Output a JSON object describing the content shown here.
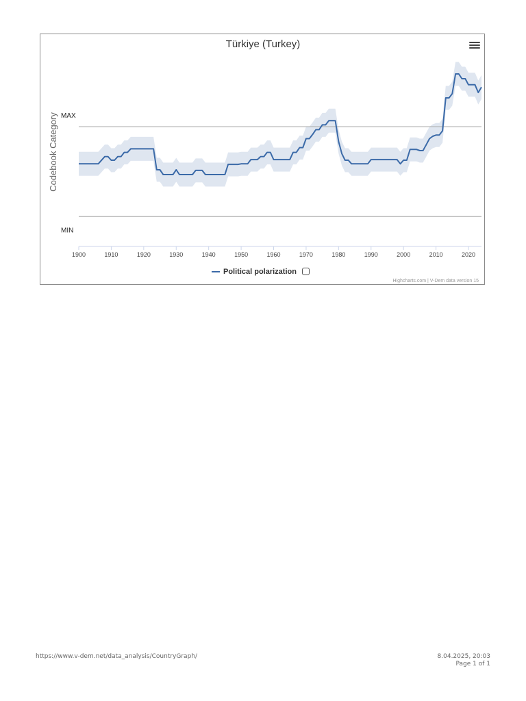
{
  "chart_data": {
    "type": "line",
    "title": "Türkiye (Turkey)",
    "ylabel": "Codebook Category",
    "xlabel": "",
    "xlim": [
      1900,
      2024
    ],
    "ylim": [
      -0.5,
      2.7
    ],
    "x_ticks": [
      "1900",
      "1910",
      "1920",
      "1930",
      "1940",
      "1950",
      "1960",
      "1970",
      "1980",
      "1990",
      "2000",
      "2010",
      "2020"
    ],
    "reference_lines": [
      {
        "label": "MAX",
        "value": 1.5
      },
      {
        "label": "MIN",
        "value": 0
      }
    ],
    "grid": false,
    "legend": "bottom",
    "series": [
      {
        "name": "Political polarization",
        "color": "#3b6aa8",
        "band_color": "#dfe6f0",
        "points": [
          [
            1900,
            0.88
          ],
          [
            1906,
            0.88
          ],
          [
            1908,
            1.0
          ],
          [
            1909,
            1.0
          ],
          [
            1910,
            0.94
          ],
          [
            1911,
            0.94
          ],
          [
            1912,
            1.0
          ],
          [
            1913,
            1.0
          ],
          [
            1914,
            1.07
          ],
          [
            1915,
            1.07
          ],
          [
            1916,
            1.13
          ],
          [
            1922,
            1.13
          ],
          [
            1923,
            1.13
          ],
          [
            1924,
            0.78
          ],
          [
            1925,
            0.78
          ],
          [
            1926,
            0.7
          ],
          [
            1929,
            0.7
          ],
          [
            1930,
            0.78
          ],
          [
            1931,
            0.7
          ],
          [
            1935,
            0.7
          ],
          [
            1936,
            0.77
          ],
          [
            1938,
            0.77
          ],
          [
            1939,
            0.7
          ],
          [
            1945,
            0.7
          ],
          [
            1946,
            0.87
          ],
          [
            1949,
            0.87
          ],
          [
            1950,
            0.88
          ],
          [
            1952,
            0.88
          ],
          [
            1953,
            0.95
          ],
          [
            1955,
            0.95
          ],
          [
            1956,
            1.0
          ],
          [
            1957,
            1.0
          ],
          [
            1958,
            1.07
          ],
          [
            1959,
            1.07
          ],
          [
            1960,
            0.95
          ],
          [
            1965,
            0.95
          ],
          [
            1966,
            1.07
          ],
          [
            1967,
            1.07
          ],
          [
            1968,
            1.15
          ],
          [
            1969,
            1.15
          ],
          [
            1970,
            1.3
          ],
          [
            1971,
            1.3
          ],
          [
            1972,
            1.37
          ],
          [
            1973,
            1.45
          ],
          [
            1974,
            1.45
          ],
          [
            1975,
            1.53
          ],
          [
            1976,
            1.53
          ],
          [
            1977,
            1.6
          ],
          [
            1979,
            1.6
          ],
          [
            1980,
            1.25
          ],
          [
            1981,
            1.05
          ],
          [
            1982,
            0.94
          ],
          [
            1983,
            0.94
          ],
          [
            1984,
            0.88
          ],
          [
            1989,
            0.88
          ],
          [
            1990,
            0.95
          ],
          [
            1998,
            0.95
          ],
          [
            1999,
            0.88
          ],
          [
            2000,
            0.94
          ],
          [
            2001,
            0.94
          ],
          [
            2002,
            1.12
          ],
          [
            2004,
            1.12
          ],
          [
            2005,
            1.1
          ],
          [
            2006,
            1.1
          ],
          [
            2007,
            1.2
          ],
          [
            2008,
            1.3
          ],
          [
            2009,
            1.34
          ],
          [
            2010,
            1.36
          ],
          [
            2011,
            1.36
          ],
          [
            2012,
            1.43
          ],
          [
            2013,
            1.98
          ],
          [
            2014,
            1.98
          ],
          [
            2015,
            2.05
          ],
          [
            2016,
            2.38
          ],
          [
            2017,
            2.38
          ],
          [
            2018,
            2.3
          ],
          [
            2019,
            2.3
          ],
          [
            2020,
            2.2
          ],
          [
            2021,
            2.2
          ],
          [
            2022,
            2.2
          ],
          [
            2023,
            2.07
          ],
          [
            2024,
            2.16
          ]
        ]
      }
    ]
  },
  "header": {
    "menu_icon": "hamburger-menu-icon"
  },
  "credits": "Highcharts.com | V-Dem data version 15",
  "footer": {
    "url": "https://www.v-dem.net/data_analysis/CountryGraph/",
    "datetime": "8.04.2025, 20:03",
    "page": "Page 1 of 1"
  }
}
